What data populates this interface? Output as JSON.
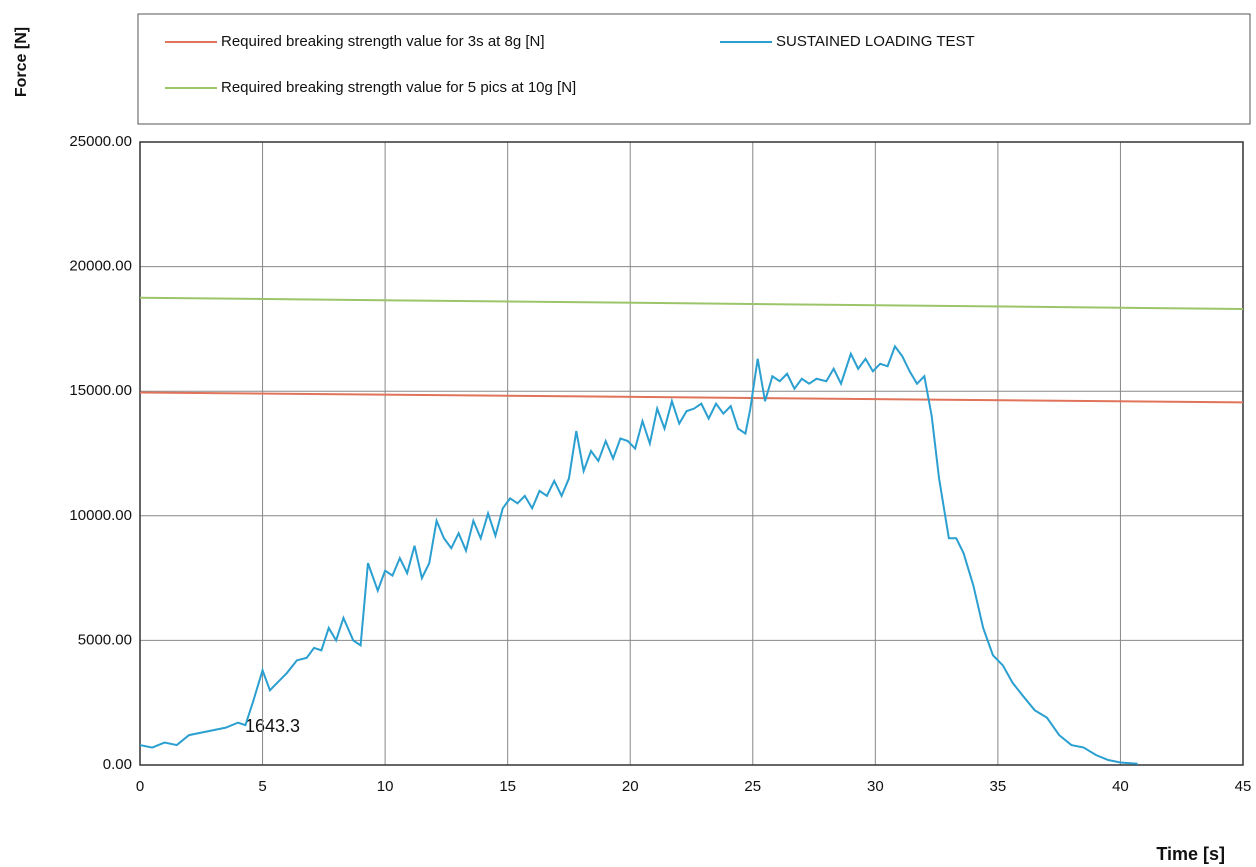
{
  "chart_data": {
    "type": "line",
    "ylabel": "Force [N]",
    "xlabel": "Time [s]",
    "annotation": "1643.3",
    "xlim": [
      0,
      45
    ],
    "xticks": [
      0,
      5,
      10,
      15,
      20,
      25,
      30,
      35,
      40,
      45
    ],
    "ylim": [
      0,
      25000
    ],
    "yticks": [
      {
        "value": 0,
        "label": "0.00"
      },
      {
        "value": 5000,
        "label": "5000.00"
      },
      {
        "value": 10000,
        "label": "10000.00"
      },
      {
        "value": 15000,
        "label": "15000.00"
      },
      {
        "value": 20000,
        "label": "20000.00"
      },
      {
        "value": 25000,
        "label": "25000.00"
      }
    ],
    "grid": true,
    "series": [
      {
        "name": "Required breaking strength value for 3s at 8g [N]",
        "color": "#e0735a",
        "x": [
          0,
          45
        ],
        "values": [
          14950,
          14550
        ]
      },
      {
        "name": "SUSTAINED LOADING TEST",
        "color": "#2a9fd0",
        "x": [
          0,
          0.5,
          1,
          1.5,
          2,
          2.5,
          3,
          3.5,
          4,
          4.3,
          4.6,
          5,
          5.3,
          5.7,
          6,
          6.4,
          6.8,
          7.1,
          7.4,
          7.7,
          8,
          8.3,
          8.7,
          9,
          9.3,
          9.7,
          10,
          10.3,
          10.6,
          10.9,
          11.2,
          11.5,
          11.8,
          12.1,
          12.4,
          12.7,
          13,
          13.3,
          13.6,
          13.9,
          14.2,
          14.5,
          14.8,
          15.1,
          15.4,
          15.7,
          16,
          16.3,
          16.6,
          16.9,
          17.2,
          17.5,
          17.8,
          18.1,
          18.4,
          18.7,
          19,
          19.3,
          19.6,
          19.9,
          20.2,
          20.5,
          20.8,
          21.1,
          21.4,
          21.7,
          22,
          22.3,
          22.6,
          22.9,
          23.2,
          23.5,
          23.8,
          24.1,
          24.4,
          24.7,
          24.9,
          25.2,
          25.5,
          25.8,
          26.1,
          26.4,
          26.7,
          27,
          27.3,
          27.6,
          28,
          28.3,
          28.6,
          29,
          29.3,
          29.6,
          29.9,
          30.2,
          30.5,
          30.8,
          31.1,
          31.4,
          31.7,
          32,
          32.3,
          32.6,
          33,
          33.3,
          33.6,
          34,
          34.4,
          34.8,
          35.2,
          35.6,
          36,
          36.5,
          37,
          37.5,
          38,
          38.5,
          39,
          39.5,
          40,
          40.7
        ],
        "values": [
          800,
          700,
          900,
          800,
          1200,
          1300,
          1400,
          1500,
          1700,
          1600,
          2500,
          3800,
          3000,
          3400,
          3700,
          4200,
          4300,
          4700,
          4600,
          5500,
          5000,
          5900,
          5000,
          4800,
          8100,
          7000,
          7800,
          7600,
          8300,
          7700,
          8800,
          7500,
          8100,
          9800,
          9100,
          8700,
          9300,
          8600,
          9800,
          9100,
          10100,
          9200,
          10300,
          10700,
          10500,
          10800,
          10300,
          11000,
          10800,
          11400,
          10800,
          11500,
          13400,
          11800,
          12600,
          12200,
          13000,
          12300,
          13100,
          13000,
          12700,
          13800,
          12900,
          14300,
          13500,
          14600,
          13700,
          14200,
          14300,
          14500,
          13900,
          14500,
          14100,
          14400,
          13500,
          13300,
          14300,
          16300,
          14600,
          15600,
          15400,
          15700,
          15100,
          15500,
          15300,
          15500,
          15400,
          15900,
          15300,
          16500,
          15900,
          16300,
          15800,
          16100,
          16000,
          16800,
          16400,
          15800,
          15300,
          15600,
          14000,
          11500,
          9100,
          9100,
          8500,
          7200,
          5500,
          4400,
          4000,
          3300,
          2800,
          2200,
          1900,
          1200,
          800,
          700,
          400,
          200,
          100,
          50
        ]
      },
      {
        "name": "Required breaking strength value for 5 pics at 10g [N]",
        "color": "#9cc56a",
        "x": [
          0,
          45
        ],
        "values": [
          18750,
          18300
        ]
      }
    ]
  }
}
